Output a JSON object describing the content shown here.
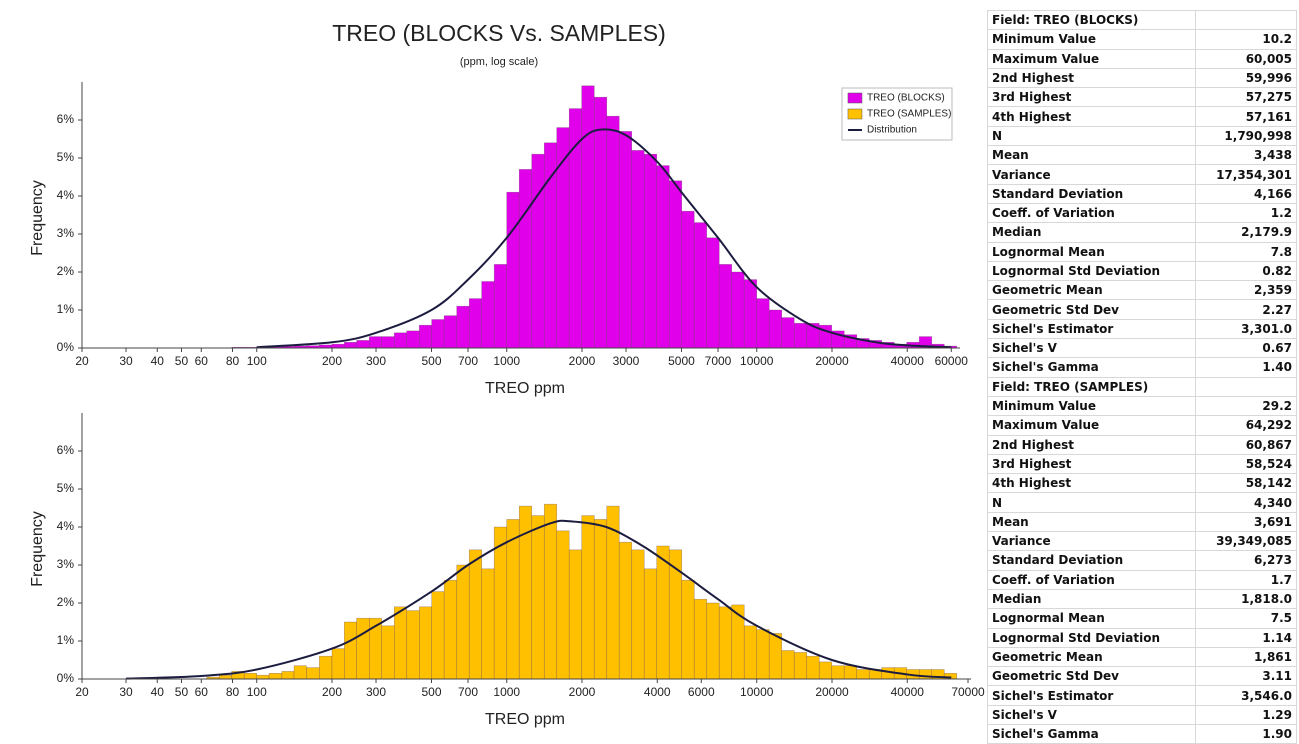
{
  "chart_data": [
    {
      "type": "histogram",
      "title": "TREO (BLOCKS Vs. SAMPLES)",
      "subtitle": "(ppm, log scale)",
      "xlabel": "TREO ppm",
      "ylabel": "Frequency",
      "xscale": "log",
      "legend": "upper right",
      "xlim": [
        20,
        65000
      ],
      "ylim": [
        0,
        7
      ],
      "xticks": [
        20,
        30,
        40,
        50,
        60,
        80,
        100,
        200,
        300,
        500,
        700,
        1000,
        2000,
        3000,
        5000,
        7000,
        10000,
        20000,
        40000,
        60000
      ],
      "yticks": [
        {
          "value": 0,
          "label": "0%"
        },
        {
          "value": 1,
          "label": "1%"
        },
        {
          "value": 2,
          "label": "2%"
        },
        {
          "value": 3,
          "label": "3%"
        },
        {
          "value": 4,
          "label": "4%"
        },
        {
          "value": 5,
          "label": "5%"
        },
        {
          "value": 6,
          "label": "6%"
        }
      ],
      "bins": [
        79.4,
        89.1,
        100,
        112,
        126,
        141,
        158,
        178,
        200,
        224,
        251,
        282,
        316,
        355,
        398,
        447,
        501,
        562,
        631,
        708,
        794,
        891,
        1000,
        1122,
        1259,
        1413,
        1585,
        1778,
        1995,
        2239,
        2512,
        2818,
        3162,
        3548,
        3981,
        4467,
        5012,
        5623,
        6310,
        7079,
        7943,
        8913,
        10000,
        11220,
        12589,
        14125,
        15849,
        17783,
        19953,
        22387,
        25119,
        28184,
        31623,
        35481,
        39811,
        44668,
        50119,
        56234,
        63096
      ],
      "series": [
        {
          "name": "TREO (BLOCKS)",
          "color": "#e100ea",
          "values": [
            0.02,
            0.02,
            0.03,
            0.03,
            0.04,
            0.05,
            0.06,
            0.08,
            0.1,
            0.15,
            0.2,
            0.3,
            0.3,
            0.4,
            0.45,
            0.6,
            0.75,
            0.85,
            1.1,
            1.3,
            1.75,
            2.2,
            4.1,
            4.7,
            5.1,
            5.4,
            5.8,
            6.3,
            6.9,
            6.6,
            6.1,
            5.7,
            5.2,
            5.1,
            4.8,
            4.4,
            3.6,
            3.3,
            2.9,
            2.2,
            2.0,
            1.8,
            1.3,
            1.0,
            0.8,
            0.65,
            0.65,
            0.6,
            0.45,
            0.35,
            0.25,
            0.2,
            0.15,
            0.1,
            0.15,
            0.3,
            0.1,
            0.05
          ]
        }
      ],
      "distribution": {
        "name": "Distribution",
        "color": "#1c1c40",
        "x": [
          100,
          200,
          300,
          500,
          700,
          1000,
          1500,
          2000,
          2400,
          3000,
          4000,
          5000,
          7000,
          10000,
          15000,
          20000,
          30000,
          40000,
          60000
        ],
        "values": [
          0.02,
          0.15,
          0.4,
          1.0,
          1.8,
          2.9,
          4.5,
          5.5,
          5.75,
          5.6,
          4.9,
          4.1,
          2.9,
          1.6,
          0.75,
          0.4,
          0.15,
          0.07,
          0.02
        ]
      }
    },
    {
      "type": "histogram",
      "xlabel": "TREO ppm",
      "ylabel": "Frequency",
      "xscale": "log",
      "xlim": [
        20,
        72000
      ],
      "ylim": [
        0,
        7
      ],
      "xticks": [
        20,
        30,
        40,
        50,
        60,
        80,
        100,
        200,
        300,
        500,
        700,
        1000,
        2000,
        4000,
        6000,
        10000,
        20000,
        40000,
        70000
      ],
      "yticks": [
        {
          "value": 0,
          "label": "0%"
        },
        {
          "value": 1,
          "label": "1%"
        },
        {
          "value": 2,
          "label": "2%"
        },
        {
          "value": 3,
          "label": "3%"
        },
        {
          "value": 4,
          "label": "4%"
        },
        {
          "value": 5,
          "label": "5%"
        },
        {
          "value": 6,
          "label": "6%"
        }
      ],
      "bins": [
        63.1,
        70.8,
        79.4,
        89.1,
        100,
        112,
        126,
        141,
        158,
        178,
        200,
        224,
        251,
        282,
        316,
        355,
        398,
        447,
        501,
        562,
        631,
        708,
        794,
        891,
        1000,
        1122,
        1259,
        1413,
        1585,
        1778,
        1995,
        2239,
        2512,
        2818,
        3162,
        3548,
        3981,
        4467,
        5012,
        5623,
        6310,
        7079,
        7943,
        8913,
        10000,
        11220,
        12589,
        14125,
        15849,
        17783,
        19953,
        22387,
        25119,
        28184,
        31623,
        35481,
        39811,
        44668,
        50119,
        56234,
        63096
      ],
      "series": [
        {
          "name": "TREO (SAMPLES)",
          "color": "#ffc000",
          "values": [
            0.05,
            0.1,
            0.2,
            0.15,
            0.1,
            0.15,
            0.2,
            0.35,
            0.3,
            0.6,
            0.8,
            1.5,
            1.6,
            1.6,
            1.4,
            1.9,
            1.8,
            1.9,
            2.3,
            2.6,
            3.0,
            3.4,
            2.9,
            4.0,
            4.2,
            4.55,
            4.3,
            4.6,
            3.9,
            3.4,
            4.3,
            4.2,
            4.55,
            3.6,
            3.4,
            2.9,
            3.5,
            3.4,
            2.6,
            2.1,
            2.0,
            1.9,
            1.95,
            1.4,
            1.3,
            1.2,
            0.75,
            0.7,
            0.6,
            0.45,
            0.35,
            0.35,
            0.25,
            0.25,
            0.3,
            0.3,
            0.25,
            0.25,
            0.25,
            0.15
          ]
        }
      ],
      "distribution": {
        "name": "Distribution",
        "color": "#1c1c40",
        "x": [
          30,
          60,
          100,
          200,
          300,
          500,
          700,
          1000,
          1500,
          1800,
          2500,
          3500,
          5000,
          7000,
          10000,
          20000,
          40000,
          60000
        ],
        "values": [
          0.01,
          0.08,
          0.25,
          0.8,
          1.4,
          2.3,
          3.0,
          3.6,
          4.1,
          4.15,
          4.0,
          3.5,
          2.8,
          2.1,
          1.4,
          0.5,
          0.12,
          0.04
        ]
      }
    }
  ],
  "table": {
    "sections": [
      {
        "header": "Field: TREO (BLOCKS)",
        "rows": [
          [
            "Minimum Value",
            "10.2"
          ],
          [
            "Maximum Value",
            "60,005"
          ],
          [
            "2nd Highest",
            "59,996"
          ],
          [
            "3rd Highest",
            "57,275"
          ],
          [
            "4th Highest",
            "57,161"
          ],
          [
            "N",
            "1,790,998"
          ],
          [
            "Mean",
            "3,438"
          ],
          [
            "Variance",
            "17,354,301"
          ],
          [
            "Standard Deviation",
            "4,166"
          ],
          [
            "Coeff. of Variation",
            "1.2"
          ],
          [
            "Median",
            "2,179.9"
          ],
          [
            "Lognormal Mean",
            "7.8"
          ],
          [
            "Lognormal Std Deviation",
            "0.82"
          ],
          [
            "Geometric Mean",
            "2,359"
          ],
          [
            "Geometric Std Dev",
            "2.27"
          ],
          [
            "Sichel's Estimator",
            "3,301.0"
          ],
          [
            "Sichel's V",
            "0.67"
          ],
          [
            "Sichel's Gamma",
            "1.40"
          ]
        ]
      },
      {
        "header": "Field: TREO (SAMPLES)",
        "rows": [
          [
            "Minimum Value",
            "29.2"
          ],
          [
            "Maximum Value",
            "64,292"
          ],
          [
            "2nd Highest",
            "60,867"
          ],
          [
            "3rd Highest",
            "58,524"
          ],
          [
            "4th Highest",
            "58,142"
          ],
          [
            "N",
            "4,340"
          ],
          [
            "Mean",
            "3,691"
          ],
          [
            "Variance",
            "39,349,085"
          ],
          [
            "Standard Deviation",
            "6,273"
          ],
          [
            "Coeff. of Variation",
            "1.7"
          ],
          [
            "Median",
            "1,818.0"
          ],
          [
            "Lognormal Mean",
            "7.5"
          ],
          [
            "Lognormal Std Deviation",
            "1.14"
          ],
          [
            "Geometric Mean",
            "1,861"
          ],
          [
            "Geometric Std Dev",
            "3.11"
          ],
          [
            "Sichel's Estimator",
            "3,546.0"
          ],
          [
            "Sichel's V",
            "1.29"
          ],
          [
            "Sichel's Gamma",
            "1.90"
          ]
        ]
      }
    ]
  }
}
